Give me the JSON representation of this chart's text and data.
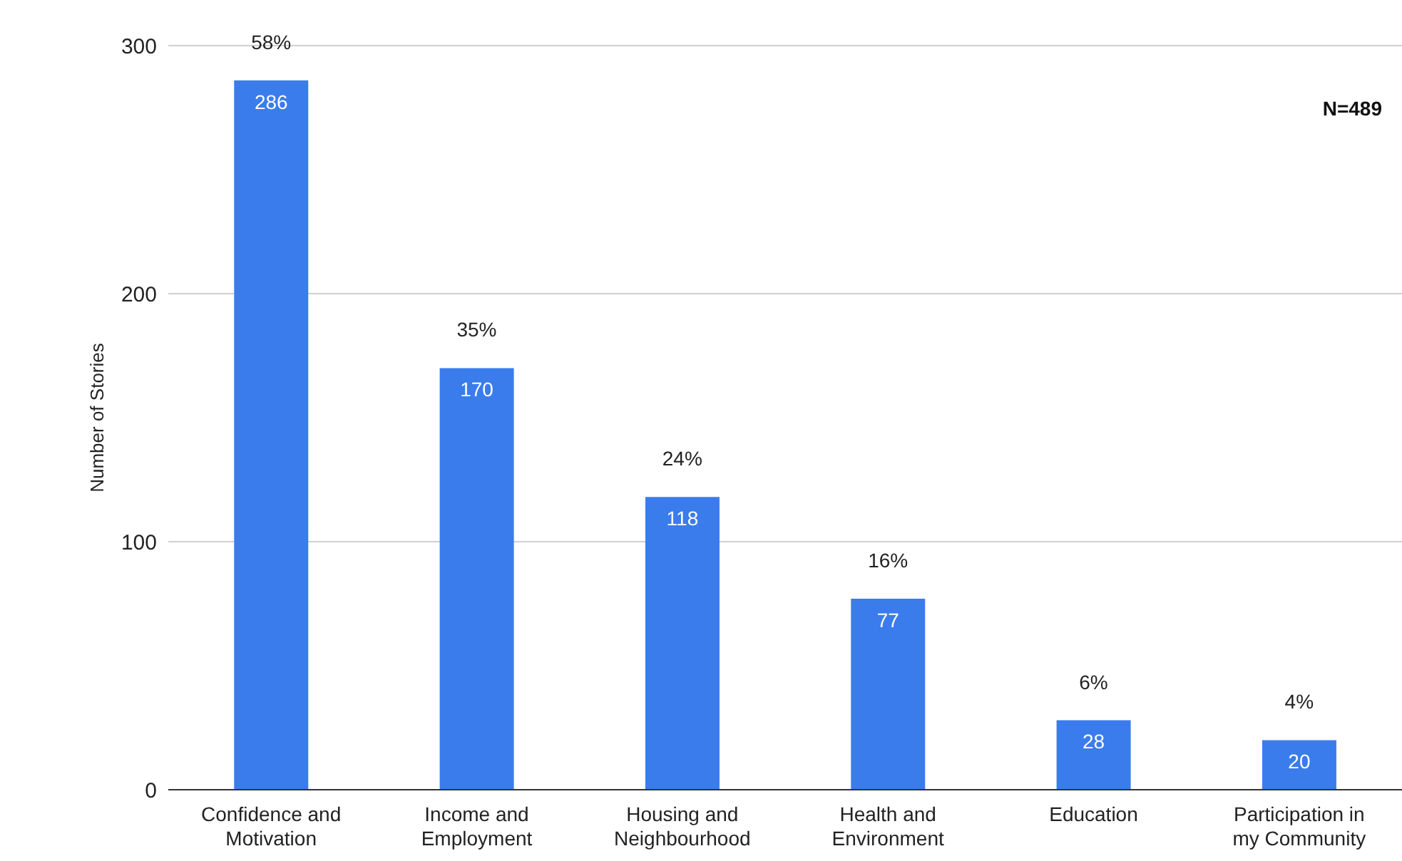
{
  "chart_data": {
    "type": "bar",
    "ylabel": "Number of Stories",
    "categories": [
      "Confidence and Motivation",
      "Income and Employment",
      "Housing and Neighbourhood",
      "Health and Environment",
      "Education",
      "Participation in my Community"
    ],
    "values": [
      286,
      170,
      118,
      77,
      28,
      20
    ],
    "color": "#3b7cec",
    "ylim": [
      0,
      300
    ],
    "yticks": [
      0,
      100,
      200,
      300
    ],
    "grid": "y",
    "data_labels": true,
    "legend": false,
    "annotations": [
      "N=489",
      {
        "text": "58%",
        "x": "Confidence and Motivation",
        "y": 286
      },
      {
        "text": "35%",
        "x": "Income and Employment",
        "y": 170
      },
      {
        "text": "24%",
        "x": "Housing and Neighbourhood",
        "y": 118
      },
      {
        "text": "16%",
        "x": "Health and Environment",
        "y": 77
      },
      {
        "text": "6%",
        "x": "Education",
        "y": 28
      },
      {
        "text": "4%",
        "x": "Participation in my Community",
        "y": 20
      }
    ]
  }
}
